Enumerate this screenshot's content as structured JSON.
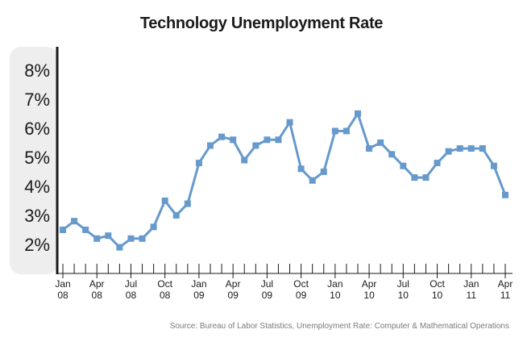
{
  "chart_data": {
    "type": "line",
    "title": "Technology Unemployment Rate",
    "source": "Source:  Bureau of Labor Statistics, Unemployment Rate:  Computer & Mathematical Operations",
    "ylim": [
      1.0,
      8.8
    ],
    "yticks": [
      {
        "value": 2,
        "label": "2%"
      },
      {
        "value": 3,
        "label": "3%"
      },
      {
        "value": 4,
        "label": "4%"
      },
      {
        "value": 5,
        "label": "5%"
      },
      {
        "value": 6,
        "label": "6%"
      },
      {
        "value": 7,
        "label": "7%"
      },
      {
        "value": 8,
        "label": "8%"
      }
    ],
    "x_labels": [
      {
        "month": "Jan",
        "year": "08"
      },
      {
        "month": "Apr",
        "year": "08"
      },
      {
        "month": "Jul",
        "year": "08"
      },
      {
        "month": "Oct",
        "year": "08"
      },
      {
        "month": "Jan",
        "year": "09"
      },
      {
        "month": "Apr",
        "year": "09"
      },
      {
        "month": "Jul",
        "year": "09"
      },
      {
        "month": "Oct",
        "year": "09"
      },
      {
        "month": "Jan",
        "year": "10"
      },
      {
        "month": "Apr",
        "year": "10"
      },
      {
        "month": "Jul",
        "year": "10"
      },
      {
        "month": "Oct",
        "year": "10"
      },
      {
        "month": "Jan",
        "year": "11"
      },
      {
        "month": "Apr",
        "year": "11"
      }
    ],
    "x_ticks_every": 1,
    "x_labels_every": 3,
    "series": [
      {
        "color": "#6699cc",
        "values": [
          2.5,
          2.8,
          2.5,
          2.2,
          2.3,
          1.9,
          2.2,
          2.2,
          2.6,
          3.5,
          3.0,
          3.4,
          4.8,
          5.4,
          5.7,
          5.6,
          4.9,
          5.4,
          5.6,
          5.6,
          6.2,
          4.6,
          4.2,
          4.5,
          5.9,
          5.9,
          6.5,
          5.3,
          5.5,
          5.1,
          4.7,
          4.3,
          4.3,
          4.8,
          5.2,
          5.3,
          5.3,
          5.3,
          4.7,
          3.7
        ]
      }
    ],
    "grid": false,
    "colors": {
      "line": "#6699cc",
      "axis": "#1a1a1a",
      "panel": "#eeeeee"
    }
  }
}
